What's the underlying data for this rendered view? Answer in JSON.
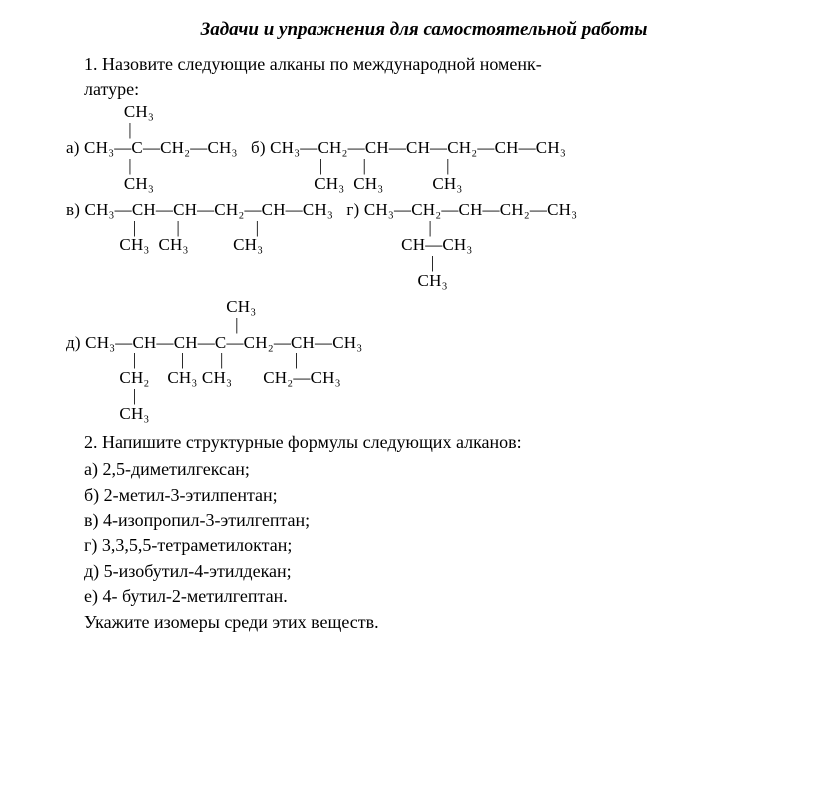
{
  "title": "Задачи и упражнения для самостоятельной работы",
  "task1": {
    "number": "1.",
    "intro_line1": "Назовите следующие алканы по международной номенк-",
    "intro_line2": "латуре:",
    "block1": "             CH₃\n              |\nа) CH₃—C—CH₂—CH₃   б) CH₃—CH₂—CH—CH—CH₂—CH—CH₃\n              |                                          |         |                  |\n             CH₃                                    CH₃  CH₃           CH₃",
    "block2": "в) CH₃—CH—CH—CH₂—CH—CH₃   г) CH₃—CH₂—CH—CH₂—CH₃\n               |         |                 |                                      |\n            CH₃  CH₃          CH₃                               CH—CH₃\n                                                                                  |\n                                                                               CH₃",
    "block3": "                                    CH₃\n                                      |\nд) CH₃—CH—CH—C—CH₂—CH—CH₃\n               |          |        |                |\n            CH₂    CH₃ CH₃       CH₂—CH₃\n               |\n            CH₃"
  },
  "task2": {
    "number": "2.",
    "intro": "Напишите структурные формулы следующих алканов:",
    "items": {
      "a": "а) 2,5-диметилгексан;",
      "b": "б) 2-метил-3-этилпентан;",
      "c": "в) 4-изопропил-3-этилгептан;",
      "d": "г) 3,3,5,5-тетраметилоктан;",
      "e": "д) 5-изобутил-4-этилдекан;",
      "f": "е) 4-      бутил-2-метилгептан."
    },
    "closing": "Укажите изомеры среди этих веществ."
  }
}
